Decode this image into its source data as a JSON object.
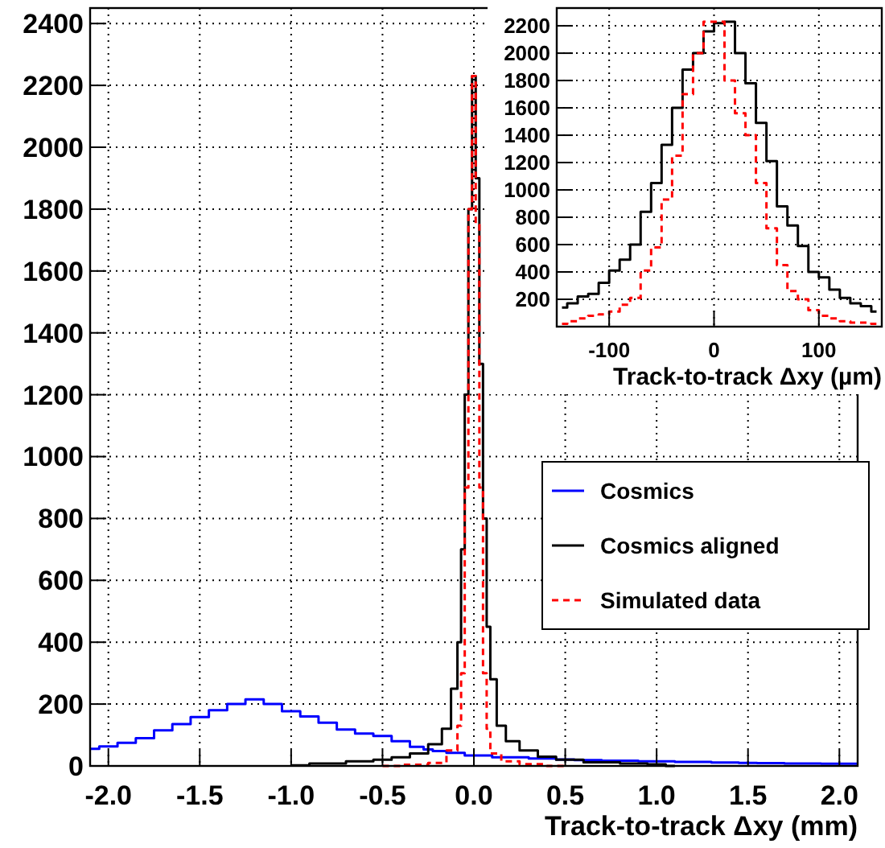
{
  "chart_data": [
    {
      "type": "step",
      "xlabel": "Track-to-track Δxy (mm)",
      "xlim": [
        -2.1,
        2.1
      ],
      "ylim": [
        0,
        2450
      ],
      "xticks": [
        {
          "value": -2,
          "label": "-2.0"
        },
        {
          "value": -1.5,
          "label": "-1.5"
        },
        {
          "value": -1,
          "label": "-1.0"
        },
        {
          "value": -0.5,
          "label": "-0.5"
        },
        {
          "value": 0,
          "label": "0.0"
        },
        {
          "value": 0.5,
          "label": "0.5"
        },
        {
          "value": 1,
          "label": "1.0"
        },
        {
          "value": 1.5,
          "label": "1.5"
        },
        {
          "value": 2,
          "label": "2.0"
        }
      ],
      "yticks": [
        0,
        200,
        400,
        600,
        800,
        1000,
        1200,
        1400,
        1600,
        1800,
        2000,
        2200,
        2400
      ],
      "grid": true,
      "legend": "right",
      "series": [
        {
          "name": "Cosmics",
          "color": "#0000ff",
          "x": [
            -2.1,
            -2.0,
            -1.9,
            -1.8,
            -1.7,
            -1.6,
            -1.5,
            -1.4,
            -1.3,
            -1.2,
            -1.1,
            -1.0,
            -0.9,
            -0.8,
            -0.7,
            -0.6,
            -0.5,
            -0.4,
            -0.3,
            -0.25,
            -0.2,
            -0.1,
            0.0,
            0.2,
            0.4,
            0.5,
            0.6,
            0.8,
            1.0,
            1.2,
            1.4,
            1.5,
            1.6,
            1.8,
            2.0,
            2.1
          ],
          "values": [
            55,
            63,
            75,
            90,
            115,
            135,
            158,
            180,
            200,
            215,
            200,
            177,
            160,
            140,
            118,
            105,
            97,
            80,
            62,
            53,
            48,
            42,
            34,
            28,
            24,
            21,
            19,
            17,
            15,
            13,
            11,
            10,
            9,
            8,
            7,
            7
          ]
        },
        {
          "name": "Cosmics aligned",
          "color": "#000000",
          "x": [
            -1.0,
            -0.8,
            -0.6,
            -0.5,
            -0.4,
            -0.3,
            -0.2,
            -0.15,
            -0.1,
            -0.08,
            -0.06,
            -0.04,
            -0.02,
            0.0,
            0.02,
            0.04,
            0.06,
            0.08,
            0.1,
            0.15,
            0.2,
            0.3,
            0.4,
            0.5,
            0.7,
            0.9,
            1.0,
            1.1
          ],
          "values": [
            2,
            8,
            15,
            20,
            28,
            40,
            70,
            120,
            250,
            400,
            700,
            1200,
            1800,
            2230,
            1900,
            1300,
            800,
            450,
            280,
            130,
            80,
            50,
            30,
            20,
            12,
            8,
            5,
            0
          ]
        },
        {
          "name": "Simulated data",
          "color": "#ff0000",
          "line_style": "dashed",
          "x": [
            -0.5,
            -0.3,
            -0.2,
            -0.1,
            -0.08,
            -0.06,
            -0.04,
            -0.02,
            0.0,
            0.02,
            0.04,
            0.06,
            0.08,
            0.1,
            0.2,
            0.3,
            0.5
          ],
          "values": [
            0,
            4,
            10,
            50,
            130,
            300,
            900,
            1800,
            2230,
            1750,
            900,
            300,
            120,
            40,
            15,
            6,
            0
          ]
        }
      ]
    },
    {
      "type": "step",
      "xlabel": "Track-to-track Δxy (µm)",
      "xlim": [
        -150,
        160
      ],
      "ylim": [
        0,
        2330
      ],
      "xticks": [
        -100,
        0,
        100
      ],
      "yticks": [
        200,
        400,
        600,
        800,
        1000,
        1200,
        1400,
        1600,
        1800,
        2000,
        2200
      ],
      "grid": true,
      "series": [
        {
          "color": "#000000",
          "x": [
            -145,
            -135,
            -125,
            -115,
            -105,
            -95,
            -85,
            -75,
            -65,
            -55,
            -45,
            -35,
            -25,
            -15,
            -5,
            5,
            15,
            25,
            35,
            45,
            55,
            65,
            75,
            85,
            95,
            105,
            115,
            125,
            135,
            145,
            155
          ],
          "values": [
            140,
            170,
            220,
            240,
            320,
            410,
            490,
            600,
            840,
            1050,
            1330,
            1600,
            1880,
            2000,
            2160,
            2220,
            2230,
            2000,
            1780,
            1490,
            1210,
            880,
            740,
            590,
            400,
            360,
            270,
            210,
            170,
            150,
            110
          ]
        },
        {
          "color": "#ff0000",
          "line_style": "dashed",
          "x": [
            -145,
            -135,
            -125,
            -115,
            -105,
            -95,
            -85,
            -75,
            -65,
            -55,
            -45,
            -35,
            -25,
            -15,
            -5,
            5,
            15,
            25,
            35,
            45,
            55,
            65,
            75,
            85,
            95,
            105,
            115,
            125,
            135,
            145,
            155
          ],
          "values": [
            20,
            40,
            60,
            80,
            90,
            110,
            160,
            210,
            410,
            580,
            930,
            1250,
            1700,
            2000,
            2230,
            2230,
            1800,
            1560,
            1400,
            1050,
            720,
            450,
            260,
            200,
            120,
            80,
            60,
            40,
            30,
            30,
            20
          ]
        }
      ]
    }
  ]
}
